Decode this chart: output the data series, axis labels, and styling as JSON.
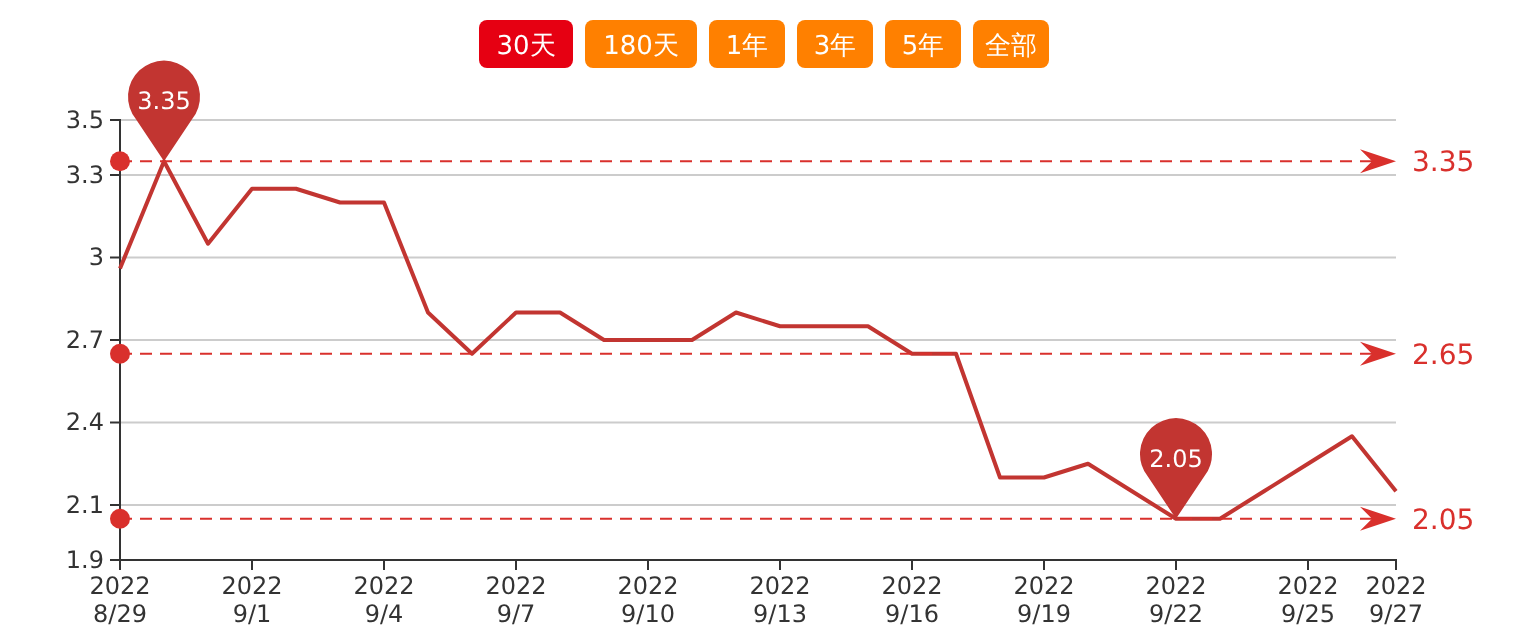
{
  "chart_data": {
    "type": "line",
    "x": [
      "2022-08-29",
      "2022-08-30",
      "2022-08-31",
      "2022-09-01",
      "2022-09-02",
      "2022-09-03",
      "2022-09-04",
      "2022-09-05",
      "2022-09-06",
      "2022-09-07",
      "2022-09-08",
      "2022-09-09",
      "2022-09-10",
      "2022-09-11",
      "2022-09-12",
      "2022-09-13",
      "2022-09-14",
      "2022-09-15",
      "2022-09-16",
      "2022-09-17",
      "2022-09-18",
      "2022-09-19",
      "2022-09-20",
      "2022-09-21",
      "2022-09-22",
      "2022-09-23",
      "2022-09-24",
      "2022-09-25",
      "2022-09-26",
      "2022-09-27"
    ],
    "series": [
      {
        "color": "#c23531",
        "values": [
          2.96,
          3.35,
          3.05,
          3.25,
          3.25,
          3.2,
          3.2,
          2.8,
          2.65,
          2.8,
          2.8,
          2.7,
          2.7,
          2.7,
          2.8,
          2.75,
          2.75,
          2.75,
          2.65,
          2.65,
          2.2,
          2.2,
          2.25,
          2.15,
          2.05,
          2.05,
          2.15,
          2.25,
          2.35,
          2.15
        ]
      }
    ],
    "xlim": [
      "2022-08-29",
      "2022-09-27"
    ],
    "xticks": [
      {
        "value": "2022-08-29",
        "label": "2022\n8/29"
      },
      {
        "value": "2022-09-01",
        "label": "2022\n9/1"
      },
      {
        "value": "2022-09-04",
        "label": "2022\n9/4"
      },
      {
        "value": "2022-09-07",
        "label": "2022\n9/7"
      },
      {
        "value": "2022-09-10",
        "label": "2022\n9/10"
      },
      {
        "value": "2022-09-13",
        "label": "2022\n9/13"
      },
      {
        "value": "2022-09-16",
        "label": "2022\n9/16"
      },
      {
        "value": "2022-09-19",
        "label": "2022\n9/19"
      },
      {
        "value": "2022-09-22",
        "label": "2022\n9/22"
      },
      {
        "value": "2022-09-25",
        "label": "2022\n9/25"
      },
      {
        "value": "2022-09-27",
        "label": "2022\n9/27"
      }
    ],
    "ylim": [
      1.9,
      3.5
    ],
    "yticks": [
      1.9,
      2.1,
      2.4,
      2.7,
      3,
      3.3,
      3.5
    ],
    "grid": "y",
    "marker": "none",
    "line_style": "solid",
    "ref_lines": [
      {
        "axis": "y",
        "value": 3.35,
        "label": "3.35",
        "color": "#d9302c",
        "line_style": "dashed"
      },
      {
        "axis": "y",
        "value": 2.65,
        "label": "2.65",
        "color": "#d9302c",
        "line_style": "dashed"
      },
      {
        "axis": "y",
        "value": 2.05,
        "label": "2.05",
        "color": "#d9302c",
        "line_style": "dashed"
      }
    ],
    "annotations": [
      "30天",
      "180天",
      "1年",
      "3年",
      "5年",
      "全部",
      {
        "text": "3.35",
        "x": "2022-08-30",
        "y": 3.35
      },
      {
        "text": "2.05",
        "x": "2022-09-22",
        "y": 2.05
      }
    ]
  }
}
